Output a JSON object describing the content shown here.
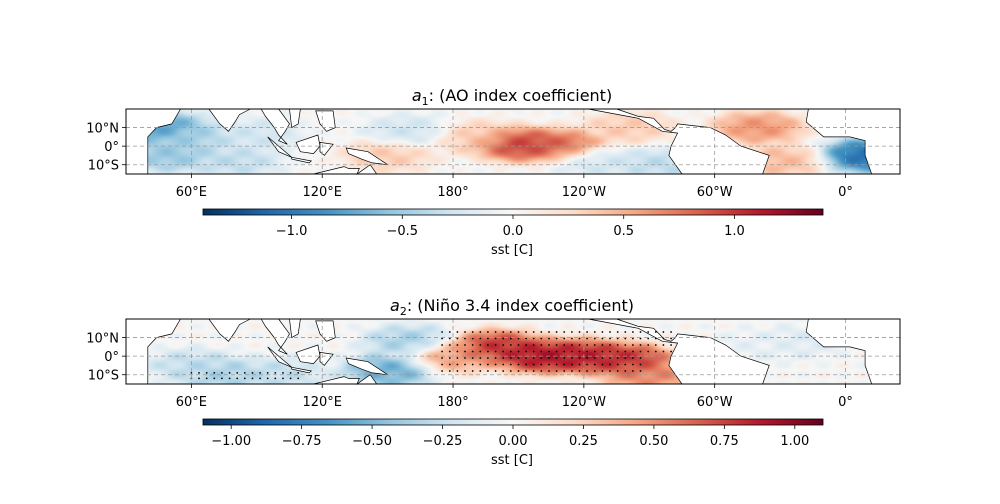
{
  "chart_data": [
    {
      "type": "heatmap",
      "title_symbol": "a",
      "title_sub": "1",
      "title_rest": ": (AO index coefficient)",
      "colormap": "RdBu_r",
      "lat_ticks": [
        "10°N",
        "0°",
        "10°S"
      ],
      "lon_ticks": [
        "60°E",
        "120°E",
        "180°",
        "120°W",
        "60°W",
        "0°"
      ],
      "grid": true,
      "colorbar": {
        "label": "sst [C]",
        "range": [
          -1.4,
          1.4
        ],
        "ticks": [
          -1.0,
          -0.5,
          0.0,
          0.5,
          1.0
        ],
        "tick_labels": [
          "−1.0",
          "−0.5",
          "0.0",
          "0.5",
          "1.0"
        ]
      },
      "stippling": false,
      "features": [
        {
          "lon": 45,
          "lat": 10,
          "value": -0.9
        },
        {
          "lon": 50,
          "lat": -5,
          "value": -0.6
        },
        {
          "lon": 60,
          "lat": 5,
          "value": -0.5
        },
        {
          "lon": 80,
          "lat": -8,
          "value": -0.4
        },
        {
          "lon": 90,
          "lat": 6,
          "value": -0.3
        },
        {
          "lon": 150,
          "lat": -5,
          "value": 0.4
        },
        {
          "lon": 160,
          "lat": 8,
          "value": -0.3
        },
        {
          "lon": -170,
          "lat": 5,
          "value": 0.4
        },
        {
          "lon": -150,
          "lat": 1,
          "value": 1.1
        },
        {
          "lon": -130,
          "lat": 0,
          "value": 0.9
        },
        {
          "lon": -115,
          "lat": -8,
          "value": -0.3
        },
        {
          "lon": -100,
          "lat": 10,
          "value": 0.4
        },
        {
          "lon": -85,
          "lat": -10,
          "value": -0.4
        },
        {
          "lon": -40,
          "lat": 10,
          "value": 0.7
        },
        {
          "lon": -30,
          "lat": -8,
          "value": 0.5
        },
        {
          "lon": 10,
          "lat": -5,
          "value": -1.2
        }
      ]
    },
    {
      "type": "heatmap",
      "title_symbol": "a",
      "title_sub": "2",
      "title_rest": ": (Niño 3.4 index coefficient)",
      "colormap": "RdBu_r",
      "lat_ticks": [
        "10°N",
        "0°",
        "10°S"
      ],
      "lon_ticks": [
        "60°E",
        "120°E",
        "180°",
        "120°W",
        "60°W",
        "0°"
      ],
      "grid": true,
      "colorbar": {
        "label": "sst [C]",
        "range": [
          -1.1,
          1.1
        ],
        "ticks": [
          -1.0,
          -0.75,
          -0.5,
          -0.25,
          0.0,
          0.25,
          0.5,
          0.75,
          1.0
        ],
        "tick_labels": [
          "−1.00",
          "−0.75",
          "−0.50",
          "−0.25",
          "0.00",
          "0.25",
          "0.50",
          "0.75",
          "1.00"
        ]
      },
      "stippling": true,
      "features": [
        {
          "lon": 60,
          "lat": -5,
          "value": -0.3
        },
        {
          "lon": 75,
          "lat": -10,
          "value": -0.4
        },
        {
          "lon": 100,
          "lat": -10,
          "value": -0.3
        },
        {
          "lon": 150,
          "lat": -8,
          "value": -0.6
        },
        {
          "lon": 160,
          "lat": 8,
          "value": -0.4
        },
        {
          "lon": 180,
          "lat": 0,
          "value": 0.5
        },
        {
          "lon": -160,
          "lat": 5,
          "value": 0.9
        },
        {
          "lon": -140,
          "lat": 0,
          "value": 1.0
        },
        {
          "lon": -120,
          "lat": 0,
          "value": 0.95
        },
        {
          "lon": -100,
          "lat": -2,
          "value": 0.9
        },
        {
          "lon": -90,
          "lat": -10,
          "value": 0.6
        },
        {
          "lon": -40,
          "lat": 5,
          "value": -0.1
        },
        {
          "lon": -20,
          "lat": 8,
          "value": -0.15
        }
      ]
    }
  ]
}
